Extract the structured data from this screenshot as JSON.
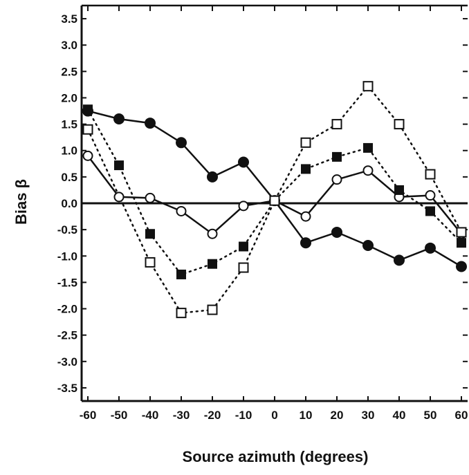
{
  "chart_data": {
    "type": "line",
    "title": "",
    "xlabel": "Source azimuth (degrees)",
    "ylabel": "Bias β",
    "xlim": [
      -62,
      62
    ],
    "ylim": [
      -3.75,
      3.75
    ],
    "x_ticks": [
      -60,
      -50,
      -40,
      -30,
      -20,
      -10,
      0,
      10,
      20,
      30,
      40,
      50,
      60
    ],
    "x_tick_labels": [
      "-60",
      "-50",
      "-40",
      "-30",
      "-20",
      "-10",
      "0",
      "10",
      "20",
      "30",
      "40",
      "50",
      "60"
    ],
    "y_ticks": [
      3.5,
      3.0,
      2.5,
      2.0,
      1.5,
      1.0,
      0.5,
      0.0,
      -0.5,
      -1.0,
      -1.5,
      -2.0,
      -2.5,
      -3.0,
      -3.5
    ],
    "y_tick_labels": [
      "3.5",
      "3.0",
      "2.5",
      "2.0",
      "1.5",
      "1.0",
      "0.5",
      "0.0",
      "-0.5",
      "-1.0",
      "-1.5",
      "-2.0",
      "-2.5",
      "-3.0",
      "-3.5"
    ],
    "reference_line_y": 0,
    "grid": false,
    "legend": "none",
    "x": [
      -60,
      -50,
      -40,
      -30,
      -20,
      -10,
      0,
      10,
      20,
      30,
      40,
      50,
      60
    ],
    "series": [
      {
        "marker": "filled-circle",
        "line": "solid",
        "values": [
          1.75,
          1.6,
          1.52,
          1.15,
          0.5,
          0.78,
          0.05,
          -0.75,
          -0.55,
          -0.8,
          -1.08,
          -0.85,
          -1.2
        ]
      },
      {
        "marker": "open-circle",
        "line": "solid",
        "values": [
          0.9,
          0.12,
          0.1,
          -0.15,
          -0.58,
          -0.05,
          0.05,
          -0.25,
          0.45,
          0.62,
          0.12,
          0.15,
          -0.58
        ]
      },
      {
        "marker": "filled-square",
        "line": "dotted",
        "values": [
          1.78,
          0.72,
          -0.58,
          -1.35,
          -1.15,
          -0.82,
          0.05,
          0.65,
          0.88,
          1.05,
          0.25,
          -0.15,
          -0.75
        ]
      },
      {
        "marker": "open-square",
        "line": "dotted",
        "values": [
          1.4,
          null,
          -1.12,
          -2.08,
          -2.02,
          -1.22,
          0.05,
          1.15,
          1.5,
          2.22,
          1.5,
          0.55,
          -0.55
        ]
      }
    ]
  }
}
